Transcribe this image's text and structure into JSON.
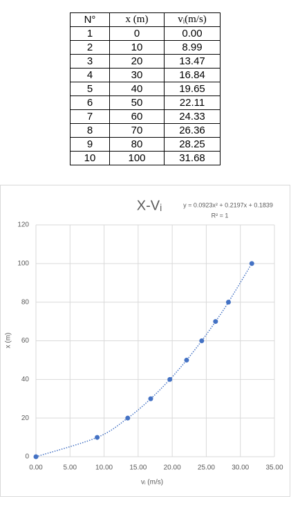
{
  "table": {
    "header": [
      "N°",
      "x (m)",
      "vᵢ(m/s)"
    ],
    "rows": [
      [
        "1",
        "0",
        "0.00"
      ],
      [
        "2",
        "10",
        "8.99"
      ],
      [
        "3",
        "20",
        "13.47"
      ],
      [
        "4",
        "30",
        "16.84"
      ],
      [
        "5",
        "40",
        "19.65"
      ],
      [
        "6",
        "50",
        "22.11"
      ],
      [
        "7",
        "60",
        "24.33"
      ],
      [
        "8",
        "70",
        "26.36"
      ],
      [
        "9",
        "80",
        "28.25"
      ],
      [
        "10",
        "100",
        "31.68"
      ]
    ]
  },
  "chart_data": {
    "type": "scatter",
    "title": "X-Vᵢ",
    "annotations": [
      "y = 0.0923x² + 0.2197x + 0.1839",
      "R² = 1"
    ],
    "x_label": "vᵢ (m/s)",
    "y_label": "x (m)",
    "x": [
      0,
      8.99,
      13.47,
      16.84,
      19.65,
      22.11,
      24.33,
      26.36,
      28.25,
      31.68
    ],
    "values": [
      0,
      10,
      20,
      30,
      40,
      50,
      60,
      70,
      80,
      100
    ],
    "color": "#4472c4",
    "trendline": "dotted",
    "xlim": [
      0,
      35
    ],
    "xticks": [
      {
        "value": 0,
        "label": "0.00"
      },
      {
        "value": 5,
        "label": "5.00"
      },
      {
        "value": 10,
        "label": "10.00"
      },
      {
        "value": 15,
        "label": "15.00"
      },
      {
        "value": 20,
        "label": "20.00"
      },
      {
        "value": 25,
        "label": "25.00"
      },
      {
        "value": 30,
        "label": "30.00"
      },
      {
        "value": 35,
        "label": "35.00"
      }
    ],
    "ylim": [
      0,
      120
    ],
    "yticks": [
      0,
      20,
      40,
      60,
      80,
      100,
      120
    ],
    "grid": true
  }
}
